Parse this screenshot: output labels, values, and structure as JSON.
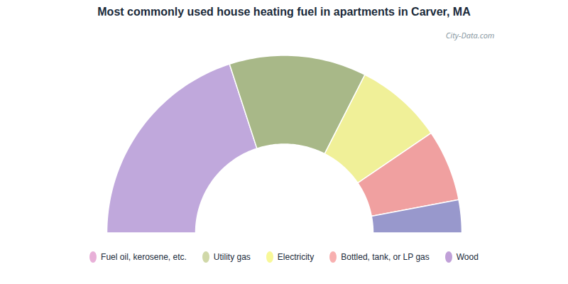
{
  "chart_data": {
    "type": "half_donut",
    "title": "Most commonly used house heating fuel in apartments in Carver, MA",
    "categories": [
      "Wood",
      "Utility gas",
      "Electricity",
      "Bottled, tank, or LP gas",
      "Fuel oil, kerosene, etc."
    ],
    "values": [
      40,
      25,
      16,
      13,
      6
    ],
    "colors": [
      "#c0a8dc",
      "#a8b888",
      "#f0f098",
      "#f0a0a0",
      "#9898cc"
    ],
    "legend_entries": [
      {
        "name": "Fuel oil, kerosene, etc.",
        "color": "#e8b0d8"
      },
      {
        "name": "Utility gas",
        "color": "#d0d8a8"
      },
      {
        "name": "Electricity",
        "color": "#f8f898"
      },
      {
        "name": "Bottled, tank, or LP gas",
        "color": "#f8b0b0"
      },
      {
        "name": "Wood",
        "color": "#c0a0d8"
      }
    ],
    "annotations": [
      "City-Data.com"
    ]
  }
}
